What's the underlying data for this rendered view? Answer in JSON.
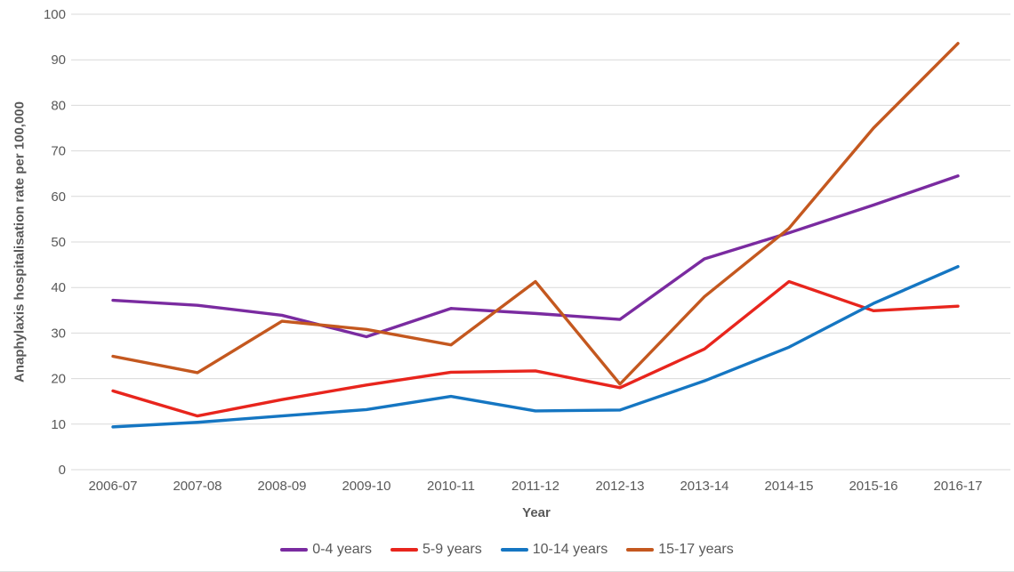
{
  "chart_data": {
    "type": "line",
    "title": "",
    "xlabel": "Year",
    "ylabel": "Anaphylaxis hospitalisation rate per 100,000",
    "ylim": [
      0,
      100
    ],
    "ytick_step": 10,
    "yticks": [
      0,
      10,
      20,
      30,
      40,
      50,
      60,
      70,
      80,
      90,
      100
    ],
    "categories": [
      "2006-07",
      "2007-08",
      "2008-09",
      "2009-10",
      "2010-11",
      "2011-12",
      "2012-13",
      "2013-14",
      "2014-15",
      "2015-16",
      "2016-17"
    ],
    "series": [
      {
        "name": "0-4 years",
        "color": "#7A2BA0",
        "values": [
          37.2,
          36.1,
          33.9,
          29.2,
          35.4,
          34.3,
          33.0,
          46.3,
          52.0,
          58.1,
          64.5
        ]
      },
      {
        "name": "5-9 years",
        "color": "#E8251D",
        "values": [
          17.3,
          11.8,
          15.4,
          18.6,
          21.4,
          21.7,
          18.0,
          26.5,
          41.3,
          34.9,
          35.9
        ]
      },
      {
        "name": "10-14 years",
        "color": "#1576C2",
        "values": [
          9.4,
          10.4,
          11.8,
          13.2,
          16.1,
          12.9,
          13.1,
          19.5,
          26.9,
          36.5,
          44.6
        ]
      },
      {
        "name": "15-17 years",
        "color": "#C4581F",
        "values": [
          24.9,
          21.3,
          32.6,
          30.8,
          27.4,
          41.3,
          18.8,
          38.0,
          53.0,
          75.0,
          93.6
        ]
      }
    ],
    "grid": "horizontal",
    "legend_position": "bottom",
    "text_color": "#595959",
    "grid_color": "#D9D9D9",
    "background": "#FFFFFF"
  }
}
